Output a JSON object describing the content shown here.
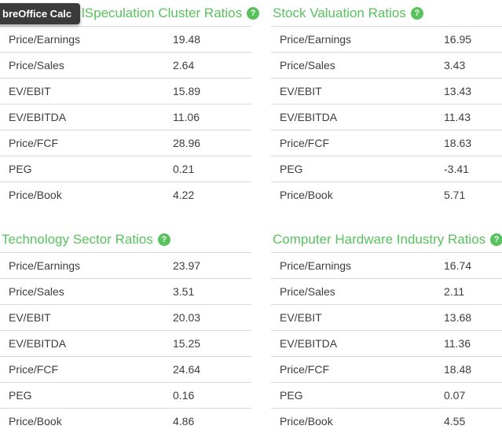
{
  "colors": {
    "accent_green": "#58c25d",
    "tooltip_bg": "#3b3b3b",
    "tooltip_text": "#ffffff",
    "row_border": "#ded7d1",
    "text": "#3d3d3d",
    "background": "#ffffff"
  },
  "os_tooltip": {
    "text": "breOffice Calc"
  },
  "help_glyph": "?",
  "row_labels": [
    "Price/Earnings",
    "Price/Sales",
    "EV/EBIT",
    "EV/EBITDA",
    "Price/FCF",
    "PEG",
    "Price/Book"
  ],
  "tables": [
    {
      "title": "lSpeculation Cluster Ratios",
      "values": [
        "19.48",
        "2.64",
        "15.89",
        "11.06",
        "28.96",
        "0.21",
        "4.22"
      ]
    },
    {
      "title": "Stock Valuation Ratios",
      "values": [
        "16.95",
        "3.43",
        "13.43",
        "11.43",
        "18.63",
        "-3.41",
        "5.71"
      ]
    },
    {
      "title": "Technology Sector Ratios",
      "values": [
        "23.97",
        "3.51",
        "20.03",
        "15.25",
        "24.64",
        "0.16",
        "4.86"
      ]
    },
    {
      "title": "Computer Hardware Industry Ratios",
      "values": [
        "16.74",
        "2.11",
        "13.68",
        "11.36",
        "18.48",
        "0.07",
        "4.55"
      ]
    }
  ]
}
